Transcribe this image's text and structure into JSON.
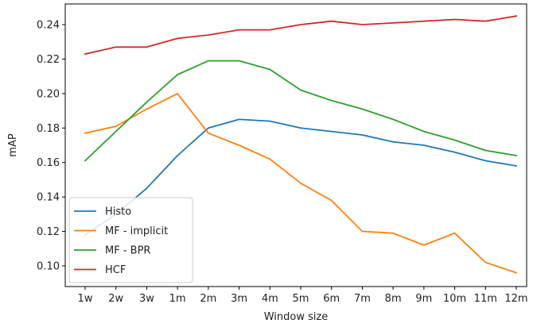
{
  "chart_data": {
    "type": "line",
    "title": "",
    "xlabel": "Window size",
    "ylabel": "mAP",
    "categories": [
      "1w",
      "2w",
      "3w",
      "1m",
      "2m",
      "3m",
      "4m",
      "5m",
      "6m",
      "7m",
      "8m",
      "9m",
      "10m",
      "11m",
      "12m"
    ],
    "ylim": [
      0.088,
      0.252
    ],
    "yticks": [
      0.1,
      0.12,
      0.14,
      0.16,
      0.18,
      0.2,
      0.22,
      0.24
    ],
    "ytick_labels": [
      "0.10",
      "0.12",
      "0.14",
      "0.16",
      "0.18",
      "0.20",
      "0.22",
      "0.24"
    ],
    "grid": false,
    "legend_position": "bottom-left",
    "series": [
      {
        "name": "Histo",
        "color": "#1f77b4",
        "values": [
          0.118,
          0.13,
          0.145,
          0.164,
          0.18,
          0.185,
          0.184,
          0.18,
          0.178,
          0.176,
          0.172,
          0.17,
          0.166,
          0.161,
          0.158
        ]
      },
      {
        "name": "MF - implicit",
        "color": "#ff7f0e",
        "values": [
          0.177,
          0.181,
          0.191,
          0.2,
          0.177,
          0.17,
          0.162,
          0.148,
          0.138,
          0.12,
          0.119,
          0.112,
          0.119,
          0.102,
          0.096
        ]
      },
      {
        "name": "MF - BPR",
        "color": "#2ca02c",
        "values": [
          0.161,
          0.178,
          0.195,
          0.211,
          0.219,
          0.219,
          0.214,
          0.202,
          0.196,
          0.191,
          0.185,
          0.178,
          0.173,
          0.167,
          0.164
        ]
      },
      {
        "name": "HCF",
        "color": "#d62728",
        "values": [
          0.223,
          0.227,
          0.227,
          0.232,
          0.234,
          0.237,
          0.237,
          0.24,
          0.242,
          0.24,
          0.241,
          0.242,
          0.243,
          0.242,
          0.245
        ]
      }
    ]
  }
}
